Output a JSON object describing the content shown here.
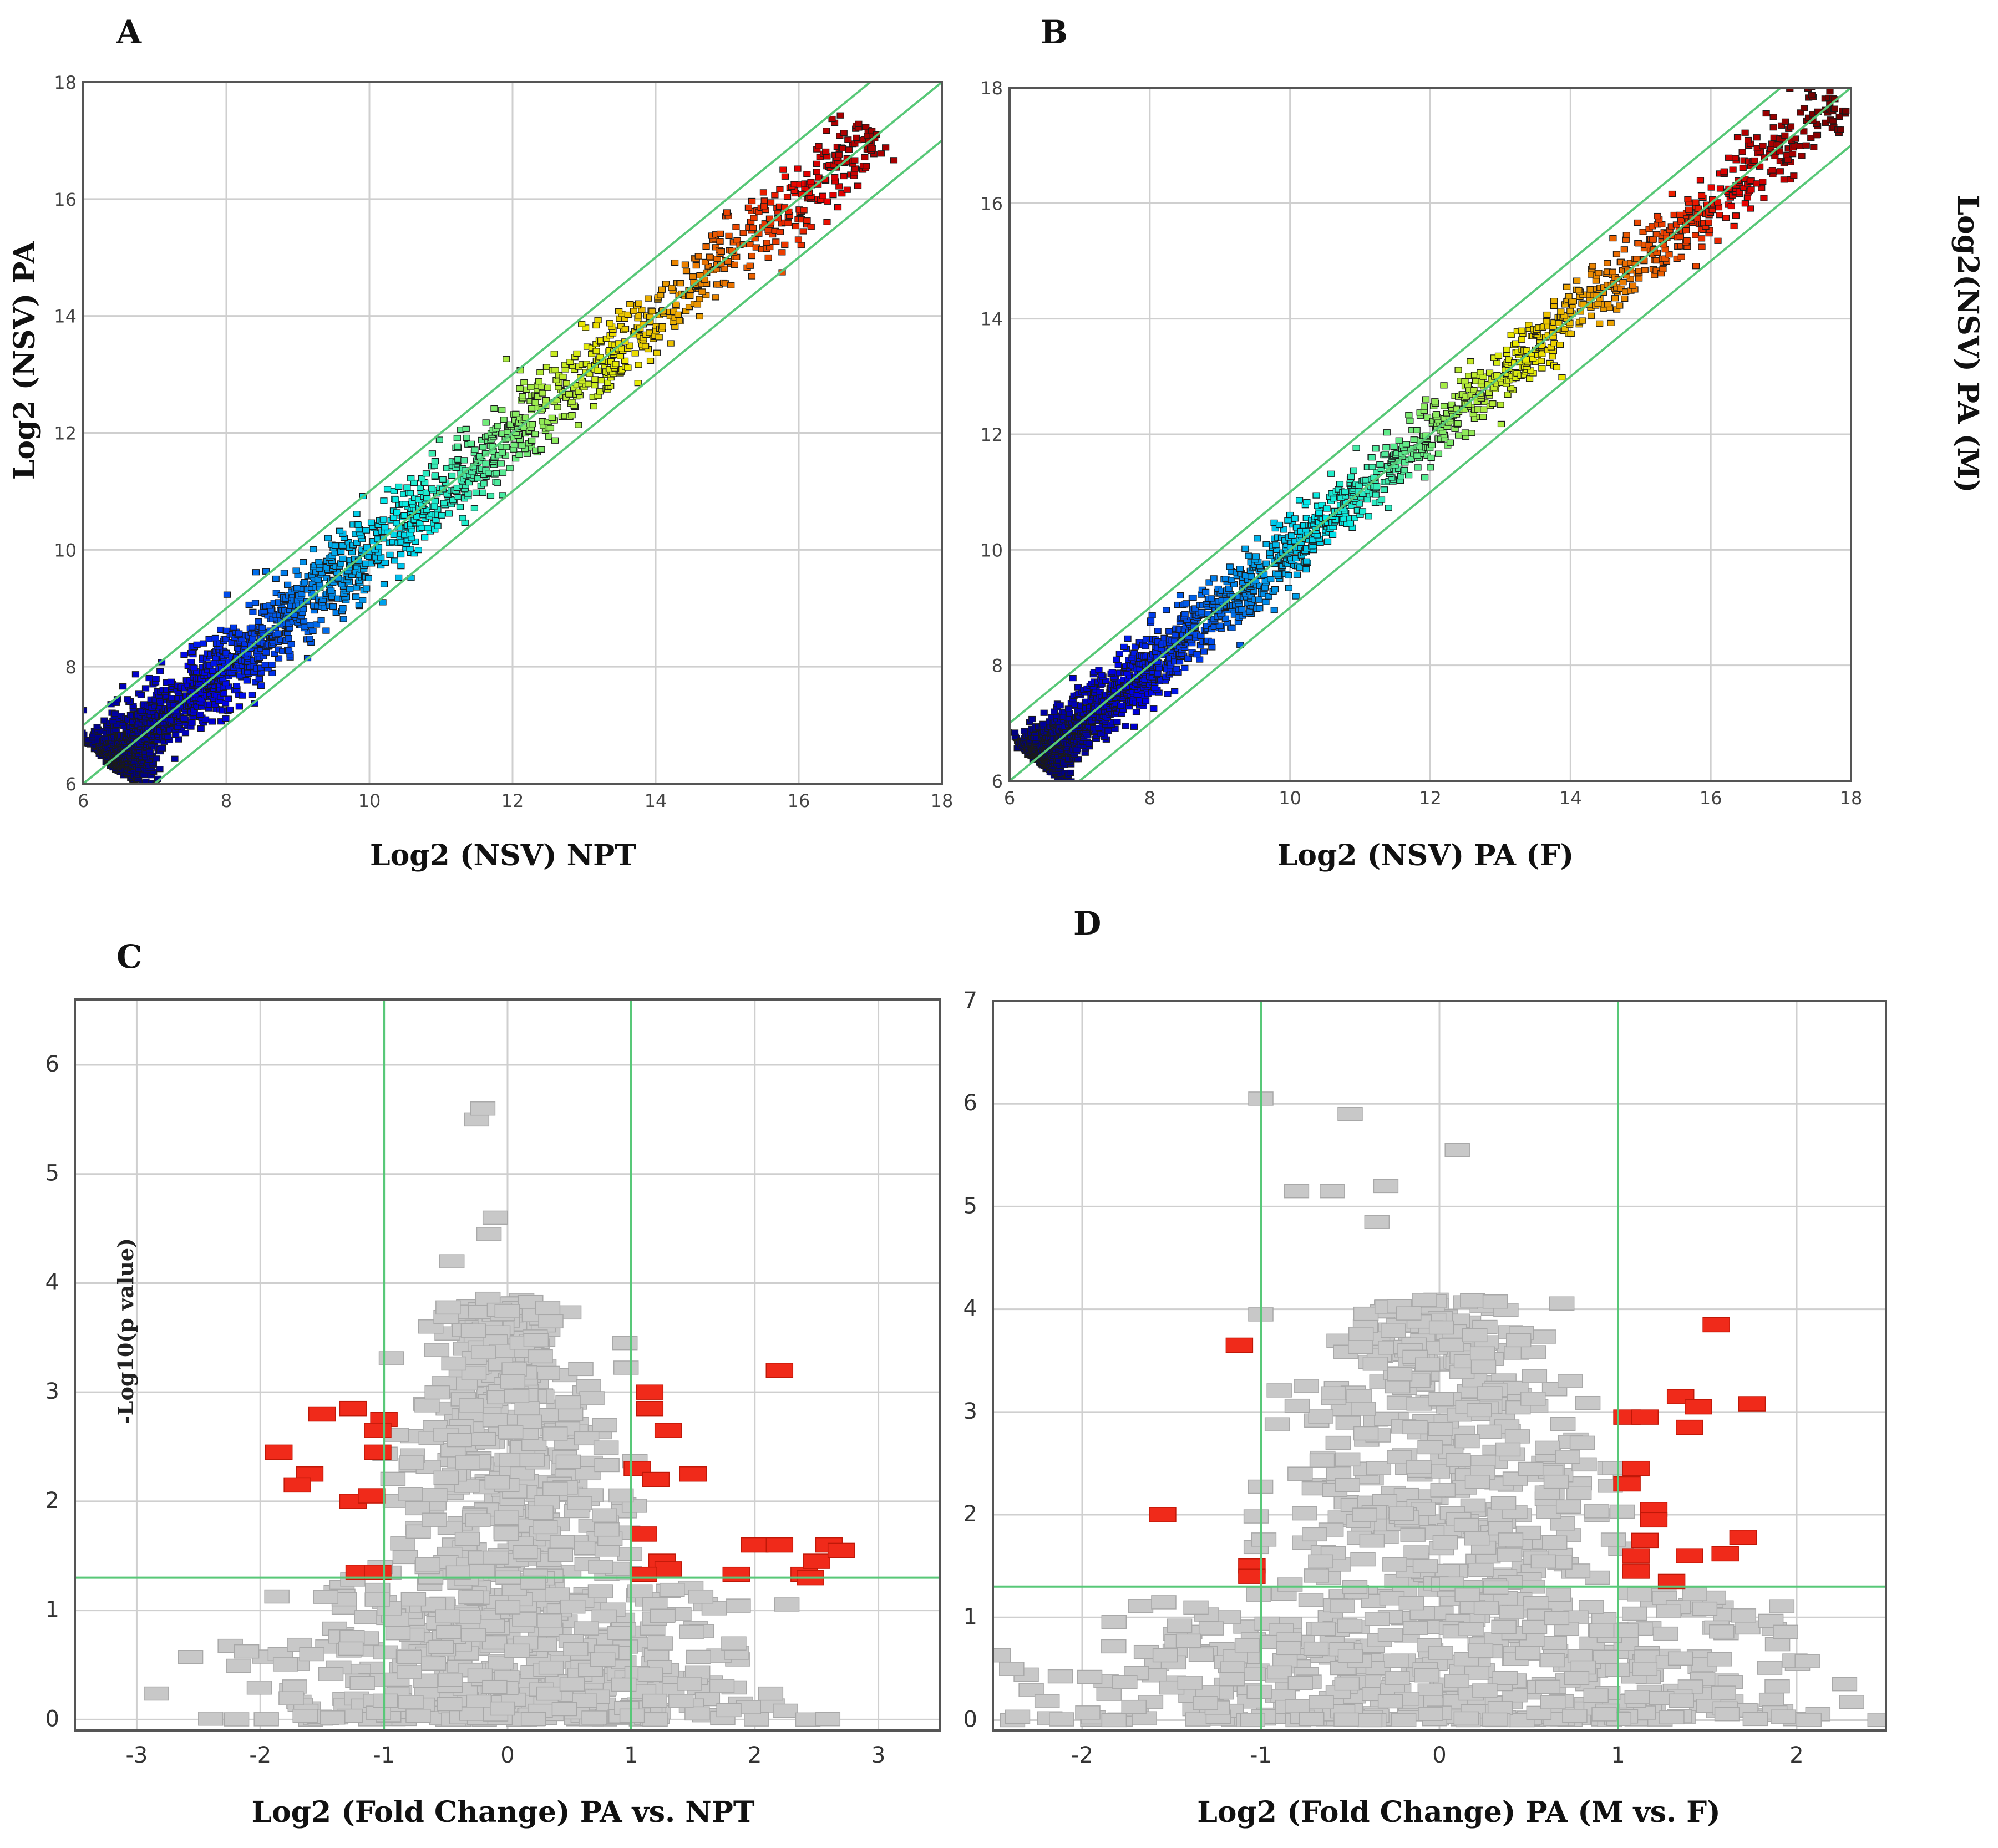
{
  "figure": {
    "colors": {
      "grid": "#cfcfcf",
      "frame": "#555555",
      "threshold": "#58c878",
      "gray_point": "#c8c8c8",
      "red_point": "#f02a1a"
    }
  },
  "chart_data": [
    {
      "id": "A",
      "type": "scatter",
      "panel_label": "A",
      "xlabel": "Log2 (NSV) NPT",
      "ylabel": "Log2 (NSV) PA",
      "xlim": [
        6,
        18
      ],
      "ylim": [
        6,
        18
      ],
      "xticks": [
        "6",
        "8",
        "10",
        "12",
        "14",
        "16",
        "18"
      ],
      "yticks": [
        "6",
        "8",
        "10",
        "12",
        "14",
        "16",
        "18"
      ],
      "reference_lines": [
        {
          "name": "y=x",
          "intercept": 0
        },
        {
          "name": "y=x+1",
          "intercept": 1
        },
        {
          "name": "y=x-1",
          "intercept": -1
        }
      ],
      "series": [
        {
          "name": "genes",
          "color_scale": "jet (by expression level)",
          "approx_count": 2500,
          "x_range": [
            6.4,
            17.1
          ],
          "spread_sd": 0.33
        }
      ]
    },
    {
      "id": "B",
      "type": "scatter",
      "panel_label": "B",
      "xlabel": "Log2 (NSV) PA (F)",
      "ylabel": "Log2(NSV) PA (M)",
      "xlim": [
        6,
        18
      ],
      "ylim": [
        6,
        18
      ],
      "xticks": [
        "6",
        "8",
        "10",
        "12",
        "14",
        "16",
        "18"
      ],
      "yticks": [
        "6",
        "8",
        "10",
        "12",
        "14",
        "16",
        "18"
      ],
      "reference_lines": [
        {
          "name": "y=x",
          "intercept": 0
        },
        {
          "name": "y=x+1",
          "intercept": 1
        },
        {
          "name": "y=x-1",
          "intercept": -1
        }
      ],
      "series": [
        {
          "name": "genes",
          "color_scale": "jet (by expression level)",
          "approx_count": 2500,
          "x_range": [
            6.4,
            17.8
          ],
          "spread_sd": 0.27
        }
      ]
    },
    {
      "id": "C",
      "type": "scatter",
      "panel_label": "C",
      "subtype": "volcano",
      "xlabel": "Log2 (Fold Change) PA vs. NPT",
      "ylabel": "-Log10(p value)",
      "xlim": [
        -3.5,
        3.5
      ],
      "ylim": [
        -0.1,
        6.6
      ],
      "xticks": [
        "-3",
        "-2",
        "-1",
        "0",
        "1",
        "2",
        "3"
      ],
      "yticks": [
        "0",
        "1",
        "2",
        "3",
        "4",
        "5",
        "6"
      ],
      "fold_change_thresholds": [
        -1,
        1
      ],
      "p_threshold": 1.3,
      "series": [
        {
          "name": "not significant",
          "color": "gray",
          "approx_count": 900
        },
        {
          "name": "significant",
          "color": "red",
          "points": [
            [
              -1.85,
              2.45
            ],
            [
              -1.6,
              2.25
            ],
            [
              -1.7,
              2.15
            ],
            [
              -1.5,
              2.8
            ],
            [
              -1.25,
              2.85
            ],
            [
              -1.0,
              2.75
            ],
            [
              -1.05,
              2.65
            ],
            [
              -1.05,
              2.45
            ],
            [
              -1.25,
              2.0
            ],
            [
              -1.1,
              2.05
            ],
            [
              -1.2,
              1.35
            ],
            [
              -1.05,
              1.35
            ],
            [
              1.15,
              3.0
            ],
            [
              1.15,
              2.85
            ],
            [
              1.3,
              2.65
            ],
            [
              1.05,
              2.3
            ],
            [
              1.2,
              2.2
            ],
            [
              1.5,
              2.25
            ],
            [
              1.1,
              1.7
            ],
            [
              1.25,
              1.45
            ],
            [
              1.3,
              1.38
            ],
            [
              1.1,
              1.33
            ],
            [
              1.85,
              1.33
            ],
            [
              2.0,
              1.6
            ],
            [
              2.2,
              1.6
            ],
            [
              2.2,
              3.2
            ],
            [
              2.4,
              1.33
            ],
            [
              2.5,
              1.45
            ],
            [
              2.6,
              1.6
            ],
            [
              2.7,
              1.55
            ],
            [
              2.45,
              1.3
            ]
          ]
        }
      ]
    },
    {
      "id": "D",
      "type": "scatter",
      "panel_label": "D",
      "subtype": "volcano",
      "xlabel": "Log2 (Fold Change) PA (M vs. F)",
      "ylabel": "",
      "xlim": [
        -2.5,
        2.5
      ],
      "ylim": [
        -0.1,
        7.0
      ],
      "xticks": [
        "-2",
        "-1",
        "0",
        "1",
        "2"
      ],
      "yticks": [
        "0",
        "1",
        "2",
        "3",
        "4",
        "5",
        "6",
        "7"
      ],
      "fold_change_thresholds": [
        -1,
        1
      ],
      "p_threshold": 1.3,
      "series": [
        {
          "name": "not significant",
          "color": "gray",
          "approx_count": 900
        },
        {
          "name": "significant",
          "color": "red",
          "points": [
            [
              -1.55,
              2.0
            ],
            [
              -1.12,
              3.65
            ],
            [
              -1.05,
              1.5
            ],
            [
              -1.05,
              1.4
            ],
            [
              1.05,
              2.95
            ],
            [
              1.15,
              2.95
            ],
            [
              1.1,
              2.45
            ],
            [
              1.05,
              2.3
            ],
            [
              1.2,
              2.05
            ],
            [
              1.2,
              1.95
            ],
            [
              1.15,
              1.75
            ],
            [
              1.1,
              1.6
            ],
            [
              1.1,
              1.45
            ],
            [
              1.3,
              1.35
            ],
            [
              1.35,
              3.15
            ],
            [
              1.45,
              3.05
            ],
            [
              1.4,
              2.85
            ],
            [
              1.55,
              3.85
            ],
            [
              1.75,
              3.08
            ],
            [
              1.4,
              1.6
            ],
            [
              1.6,
              1.62
            ],
            [
              1.7,
              1.78
            ]
          ]
        }
      ]
    }
  ]
}
